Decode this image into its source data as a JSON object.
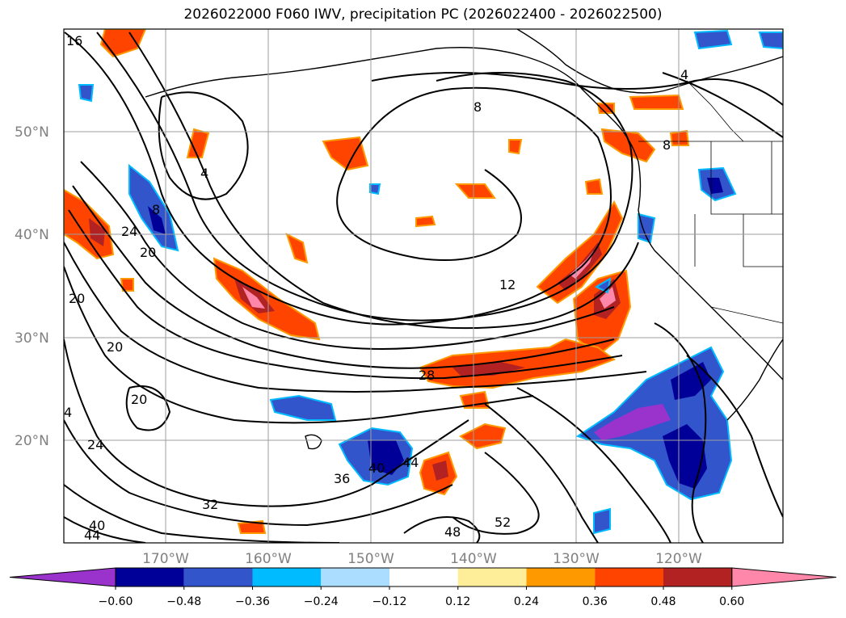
{
  "title": "2026022000 F060 IWV, precipitation PC (2026022400 - 2026022500)",
  "map": {
    "lat_ticks": [
      {
        "value": 50,
        "label": "50°N"
      },
      {
        "value": 40,
        "label": "40°N"
      },
      {
        "value": 30,
        "label": "30°N"
      },
      {
        "value": 20,
        "label": "20°N"
      }
    ],
    "lon_ticks": [
      {
        "value": -170,
        "label": "170°W"
      },
      {
        "value": -160,
        "label": "160°W"
      },
      {
        "value": -150,
        "label": "150°W"
      },
      {
        "value": -140,
        "label": "140°W"
      },
      {
        "value": -130,
        "label": "130°W"
      },
      {
        "value": -120,
        "label": "120°W"
      }
    ],
    "contour_labels": [
      "4",
      "8",
      "12",
      "16",
      "20",
      "24",
      "28",
      "32",
      "36",
      "40",
      "44",
      "48",
      "52"
    ]
  },
  "colorbar": {
    "colors": [
      "#9933cc",
      "#000099",
      "#3355cc",
      "#00bbff",
      "#aaddff",
      "#ffffff",
      "#ffee99",
      "#ff9900",
      "#ff4400",
      "#b22222",
      "#ff88aa"
    ],
    "tick_labels": [
      "−0.60",
      "−0.48",
      "−0.36",
      "−0.24",
      "−0.12",
      "0.12",
      "0.24",
      "0.36",
      "0.48",
      "0.60"
    ]
  }
}
